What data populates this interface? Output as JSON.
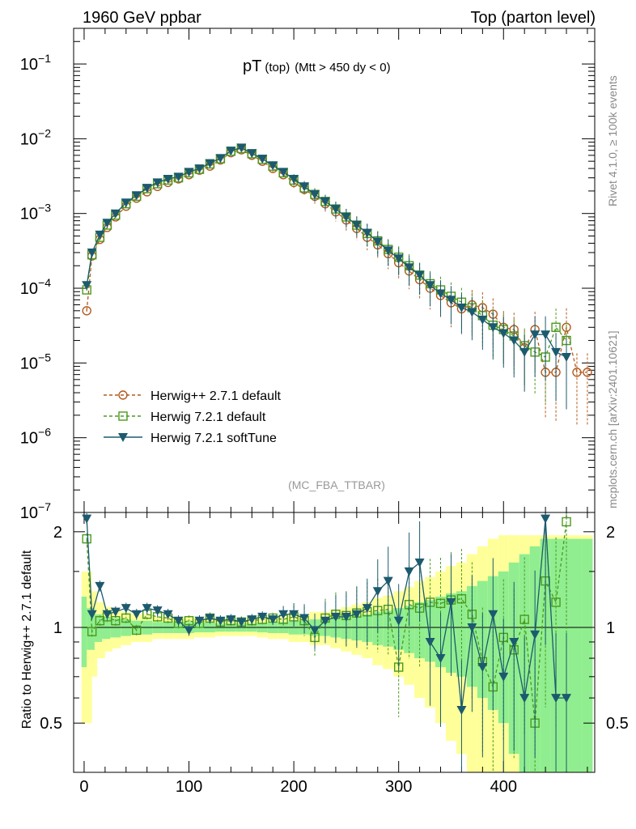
{
  "header": {
    "left": "1960 GeV ppbar",
    "right": "Top (parton level)"
  },
  "side_labels": {
    "rivet": "Rivet 4.1.0, ≥ 100k events",
    "mcplots": "mcplots.cern.ch [arXiv:2401.10621]"
  },
  "plot_title": {
    "main": "pT",
    "sub1": "(top)",
    "sub2": "(Mtt > 450 dy < 0)"
  },
  "watermark": "(MC_FBA_TTBAR)",
  "ratio_ylabel": "Ratio to Herwig++ 2.7.1 default",
  "colors": {
    "herwigpp": "#b35a1e",
    "herwig721": "#4a9a1e",
    "softtune": "#1c5a6e",
    "band_green": "#90ee90",
    "band_yellow": "#ffff99"
  },
  "chart_data": [
    {
      "type": "line",
      "title": "pT (top) (Mtt > 450 dy < 0)",
      "xlabel": "",
      "ylabel": "",
      "xlim": [
        -10,
        487
      ],
      "ylim": [
        1e-07,
        0.3
      ],
      "yscale": "log",
      "x_ticks": [
        0,
        100,
        200,
        300,
        400
      ],
      "y_ticks": [
        {
          "value": 1e-07,
          "mantissa": "10",
          "exp": "−7"
        },
        {
          "value": 1e-06,
          "mantissa": "10",
          "exp": "−6"
        },
        {
          "value": 1e-05,
          "mantissa": "10",
          "exp": "−5"
        },
        {
          "value": 0.0001,
          "mantissa": "10",
          "exp": "−4"
        },
        {
          "value": 0.001,
          "mantissa": "10",
          "exp": "−3"
        },
        {
          "value": 0.01,
          "mantissa": "10",
          "exp": "−2"
        },
        {
          "value": 0.1,
          "mantissa": "10",
          "exp": "−1"
        }
      ],
      "legend_position": "bottom-left",
      "series": [
        {
          "name": "Herwig++ 2.7.1 default",
          "marker": "open-circle",
          "dashed": true,
          "x": [
            2.5,
            7.5,
            15,
            22,
            30,
            40,
            50,
            60,
            70,
            80,
            90,
            100,
            110,
            120,
            130,
            140,
            150,
            160,
            170,
            180,
            190,
            200,
            210,
            220,
            230,
            240,
            250,
            260,
            270,
            280,
            290,
            300,
            310,
            320,
            330,
            340,
            350,
            360,
            370,
            380,
            390,
            400,
            410,
            420,
            430,
            440,
            450,
            460,
            470,
            480
          ],
          "values": [
            5e-05,
            0.00027,
            0.00045,
            0.00065,
            0.0009,
            0.00125,
            0.0016,
            0.00195,
            0.0023,
            0.0026,
            0.0029,
            0.0033,
            0.0038,
            0.0043,
            0.0052,
            0.0065,
            0.0071,
            0.006,
            0.005,
            0.004,
            0.0033,
            0.0026,
            0.0021,
            0.0017,
            0.00135,
            0.00105,
            0.00082,
            0.00063,
            0.00048,
            0.00038,
            0.00029,
            0.00022,
            0.00017,
            0.00013,
            0.0001,
            8e-05,
            6.4e-05,
            5.3e-05,
            6e-05,
            5.5e-05,
            4.5e-05,
            3e-05,
            2.8e-05,
            1.6e-05,
            2.8e-05,
            7.5e-06,
            7.5e-06,
            3e-05,
            7.5e-06,
            7.5e-06
          ]
        },
        {
          "name": "Herwig 7.2.1 default",
          "marker": "open-square",
          "dashed": true,
          "x": [
            2.5,
            7.5,
            15,
            22,
            30,
            40,
            50,
            60,
            70,
            80,
            90,
            100,
            110,
            120,
            130,
            140,
            150,
            160,
            170,
            180,
            190,
            200,
            210,
            220,
            230,
            240,
            250,
            260,
            270,
            280,
            290,
            300,
            310,
            320,
            330,
            340,
            350,
            360,
            370,
            380,
            390,
            400,
            410,
            420,
            430,
            440,
            450,
            460
          ],
          "values": [
            9.5e-05,
            0.00028,
            0.00048,
            0.0007,
            0.00095,
            0.00135,
            0.0017,
            0.00215,
            0.0025,
            0.0028,
            0.003,
            0.0035,
            0.0039,
            0.0046,
            0.0054,
            0.0068,
            0.0074,
            0.0063,
            0.0053,
            0.0043,
            0.0035,
            0.0028,
            0.0022,
            0.0018,
            0.00145,
            0.00115,
            0.0009,
            0.0007,
            0.00054,
            0.00043,
            0.00033,
            0.00026,
            0.0002,
            0.00015,
            0.000115,
            9.5e-05,
            7.8e-05,
            6.5e-05,
            5.5e-05,
            4.3e-05,
            3.2e-05,
            2.8e-05,
            2.3e-05,
            1.7e-05,
            1.4e-05,
            1.2e-05,
            3e-05,
            2e-05
          ]
        },
        {
          "name": "Herwig 7.2.1 softTune",
          "marker": "filled-triangle-down",
          "dashed": false,
          "x": [
            2.5,
            7.5,
            15,
            22,
            30,
            40,
            50,
            60,
            70,
            80,
            90,
            100,
            110,
            120,
            130,
            140,
            150,
            160,
            170,
            180,
            190,
            200,
            210,
            220,
            230,
            240,
            250,
            260,
            270,
            280,
            290,
            300,
            310,
            320,
            330,
            340,
            350,
            360,
            370,
            380,
            390,
            400,
            410,
            420,
            430,
            440,
            450,
            460
          ],
          "values": [
            0.00011,
            0.0003,
            0.00052,
            0.00075,
            0.001,
            0.0014,
            0.00175,
            0.0022,
            0.0026,
            0.0029,
            0.0031,
            0.0036,
            0.004,
            0.0047,
            0.0055,
            0.0069,
            0.0076,
            0.0064,
            0.0054,
            0.0044,
            0.0036,
            0.0029,
            0.0023,
            0.0018,
            0.00145,
            0.00115,
            0.0009,
            0.0007,
            0.00055,
            0.00042,
            0.00032,
            0.00025,
            0.00019,
            0.00015,
            0.00011,
            8.5e-05,
            7e-05,
            5.5e-05,
            4.8e-05,
            3.8e-05,
            3e-05,
            2.5e-05,
            2e-05,
            1.4e-05,
            2.4e-05,
            2.4e-05,
            1.4e-05,
            1.2e-05
          ]
        }
      ]
    },
    {
      "type": "line",
      "title": "",
      "xlabel": "",
      "ylabel": "Ratio to Herwig++ 2.7.1 default",
      "xlim": [
        -10,
        487
      ],
      "ylim": [
        0.35,
        2.3
      ],
      "yscale": "log",
      "x_ticks": [
        0,
        100,
        200,
        300,
        400
      ],
      "y_ticks": [
        0.5,
        1,
        2
      ],
      "y_tick_labels": [
        "0.5",
        "1",
        "2"
      ],
      "reference_line": 1,
      "bands": {
        "x": [
          2.5,
          7.5,
          15,
          22,
          30,
          40,
          50,
          60,
          70,
          80,
          90,
          100,
          110,
          120,
          130,
          140,
          150,
          160,
          170,
          180,
          190,
          200,
          210,
          220,
          230,
          240,
          250,
          260,
          270,
          280,
          290,
          300,
          310,
          320,
          330,
          340,
          350,
          360,
          370,
          380,
          390,
          400,
          410,
          420,
          430,
          440,
          450,
          460,
          470,
          480
        ],
        "green_rel_err": [
          0.25,
          0.15,
          0.1,
          0.08,
          0.07,
          0.06,
          0.05,
          0.05,
          0.04,
          0.04,
          0.04,
          0.04,
          0.035,
          0.035,
          0.03,
          0.03,
          0.03,
          0.03,
          0.035,
          0.04,
          0.04,
          0.05,
          0.05,
          0.06,
          0.06,
          0.07,
          0.08,
          0.09,
          0.1,
          0.12,
          0.13,
          0.15,
          0.17,
          0.2,
          0.22,
          0.25,
          0.28,
          0.3,
          0.35,
          0.4,
          0.45,
          0.5,
          0.6,
          0.7,
          0.8,
          0.9,
          0.9,
          0.9,
          0.9,
          0.9
        ],
        "yellow_rel_err": [
          0.5,
          0.3,
          0.2,
          0.16,
          0.14,
          0.12,
          0.1,
          0.1,
          0.08,
          0.08,
          0.08,
          0.08,
          0.07,
          0.07,
          0.06,
          0.06,
          0.06,
          0.06,
          0.07,
          0.08,
          0.08,
          0.1,
          0.1,
          0.12,
          0.12,
          0.14,
          0.16,
          0.18,
          0.2,
          0.24,
          0.26,
          0.3,
          0.34,
          0.4,
          0.44,
          0.5,
          0.56,
          0.6,
          0.7,
          0.8,
          0.9,
          0.95,
          0.95,
          0.95,
          0.95,
          0.95,
          0.95,
          0.95,
          0.95,
          0.95
        ]
      },
      "series": [
        {
          "name": "Herwig 7.2.1 default",
          "marker": "open-square",
          "dashed": true,
          "x": [
            2.5,
            7.5,
            15,
            22,
            30,
            40,
            50,
            60,
            70,
            80,
            90,
            100,
            110,
            120,
            130,
            140,
            150,
            160,
            170,
            180,
            190,
            200,
            210,
            220,
            230,
            240,
            250,
            260,
            270,
            280,
            290,
            300,
            310,
            320,
            330,
            340,
            350,
            360,
            370,
            380,
            390,
            400,
            410,
            420,
            430,
            440,
            450,
            460
          ],
          "values": [
            1.9,
            0.97,
            1.05,
            1.08,
            1.05,
            1.07,
            0.98,
            1.1,
            1.08,
            1.07,
            1.03,
            1.05,
            1.03,
            1.07,
            1.04,
            1.05,
            1.04,
            1.05,
            1.06,
            1.07,
            1.06,
            1.08,
            1.05,
            0.93,
            1.07,
            1.1,
            1.09,
            1.11,
            1.12,
            1.13,
            1.14,
            0.75,
            1.18,
            1.15,
            1.2,
            1.19,
            1.22,
            1.23,
            1.1,
            0.78,
            0.65,
            0.93,
            0.85,
            1.06,
            0.5,
            1.4,
            1.2,
            2.15
          ]
        },
        {
          "name": "Herwig 7.2.1 softTune",
          "marker": "filled-triangle-down",
          "dashed": false,
          "x": [
            2.5,
            7.5,
            15,
            22,
            30,
            40,
            50,
            60,
            70,
            80,
            90,
            100,
            110,
            120,
            130,
            140,
            150,
            160,
            170,
            180,
            190,
            200,
            210,
            220,
            230,
            240,
            250,
            260,
            270,
            280,
            290,
            300,
            310,
            320,
            330,
            340,
            350,
            360,
            370,
            380,
            390,
            400,
            410,
            420,
            430,
            440,
            450,
            460
          ],
          "values": [
            2.2,
            1.1,
            1.35,
            1.1,
            1.12,
            1.15,
            1.1,
            1.15,
            1.13,
            1.1,
            1.05,
            0.98,
            1.05,
            1.07,
            1.05,
            1.06,
            1.04,
            1.06,
            1.08,
            1.06,
            1.1,
            1.1,
            1.07,
            0.98,
            1.05,
            1.08,
            1.08,
            1.1,
            1.15,
            1.3,
            1.4,
            1.05,
            1.5,
            1.6,
            0.9,
            0.8,
            1.2,
            0.55,
            1.0,
            0.75,
            1.1,
            0.7,
            0.9,
            0.6,
            0.95,
            2.2,
            0.6,
            0.6
          ]
        }
      ]
    }
  ]
}
